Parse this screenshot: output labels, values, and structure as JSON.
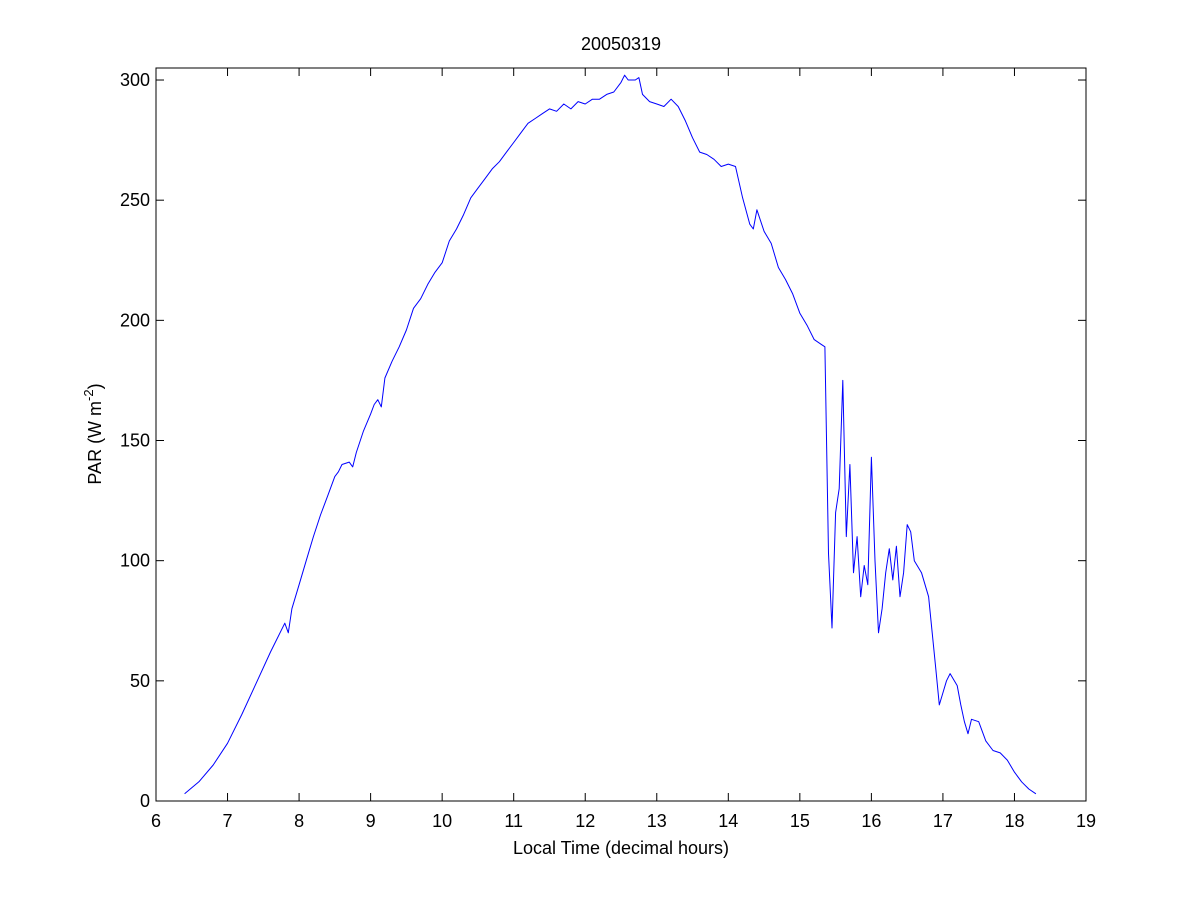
{
  "chart_data": {
    "type": "line",
    "title": "20050319",
    "xlabel": "Local Time (decimal hours)",
    "ylabel": {
      "base": "PAR (W m",
      "sup": "-2",
      "close": ")"
    },
    "xlim": [
      6,
      19
    ],
    "ylim": [
      0,
      305
    ],
    "xticks": [
      6,
      7,
      8,
      9,
      10,
      11,
      12,
      13,
      14,
      15,
      16,
      17,
      18,
      19
    ],
    "yticks": [
      0,
      50,
      100,
      150,
      200,
      250,
      300
    ],
    "grid": false,
    "box": true,
    "series": [
      {
        "color": "#0000ff",
        "x": [
          6.4,
          6.6,
          6.8,
          7.0,
          7.2,
          7.4,
          7.6,
          7.8,
          7.85,
          7.9,
          8.0,
          8.1,
          8.2,
          8.3,
          8.4,
          8.5,
          8.55,
          8.6,
          8.7,
          8.75,
          8.8,
          8.9,
          9.0,
          9.05,
          9.1,
          9.15,
          9.2,
          9.3,
          9.4,
          9.5,
          9.6,
          9.7,
          9.8,
          9.9,
          10.0,
          10.1,
          10.2,
          10.3,
          10.4,
          10.5,
          10.6,
          10.7,
          10.8,
          10.9,
          11.0,
          11.1,
          11.2,
          11.3,
          11.4,
          11.5,
          11.6,
          11.7,
          11.8,
          11.9,
          12.0,
          12.1,
          12.2,
          12.3,
          12.4,
          12.5,
          12.55,
          12.6,
          12.7,
          12.75,
          12.8,
          12.9,
          13.0,
          13.1,
          13.2,
          13.3,
          13.4,
          13.5,
          13.6,
          13.7,
          13.8,
          13.9,
          14.0,
          14.1,
          14.2,
          14.3,
          14.35,
          14.4,
          14.5,
          14.6,
          14.7,
          14.8,
          14.9,
          15.0,
          15.1,
          15.2,
          15.3,
          15.35,
          15.4,
          15.45,
          15.5,
          15.55,
          15.6,
          15.65,
          15.7,
          15.75,
          15.8,
          15.85,
          15.9,
          15.95,
          16.0,
          16.05,
          16.1,
          16.15,
          16.2,
          16.25,
          16.3,
          16.35,
          16.4,
          16.45,
          16.5,
          16.55,
          16.6,
          16.7,
          16.8,
          16.85,
          16.9,
          16.95,
          17.0,
          17.05,
          17.1,
          17.2,
          17.25,
          17.3,
          17.35,
          17.4,
          17.5,
          17.6,
          17.7,
          17.8,
          17.9,
          18.0,
          18.1,
          18.2,
          18.3
        ],
        "y": [
          3,
          8,
          15,
          24,
          36,
          49,
          62,
          74,
          70,
          80,
          90,
          100,
          110,
          119,
          127,
          135,
          137,
          140,
          141,
          139,
          145,
          154,
          161,
          165,
          167,
          164,
          176,
          183,
          189,
          196,
          205,
          209,
          215,
          220,
          224,
          233,
          238,
          244,
          251,
          255,
          259,
          263,
          266,
          270,
          274,
          278,
          282,
          284,
          286,
          288,
          287,
          290,
          288,
          291,
          290,
          292,
          292,
          294,
          295,
          299,
          302,
          300,
          300,
          301,
          294,
          291,
          290,
          289,
          292,
          289,
          283,
          276,
          270,
          269,
          267,
          264,
          265,
          264,
          251,
          240,
          238,
          246,
          237,
          232,
          222,
          217,
          211,
          203,
          198,
          192,
          190,
          189,
          103,
          72,
          120,
          130,
          175,
          110,
          140,
          95,
          110,
          85,
          98,
          90,
          143,
          100,
          70,
          80,
          95,
          105,
          92,
          106,
          85,
          95,
          115,
          112,
          100,
          95,
          85,
          70,
          55,
          40,
          45,
          50,
          53,
          48,
          40,
          33,
          28,
          34,
          33,
          25,
          21,
          20,
          17,
          12,
          8,
          5,
          3
        ]
      }
    ]
  }
}
